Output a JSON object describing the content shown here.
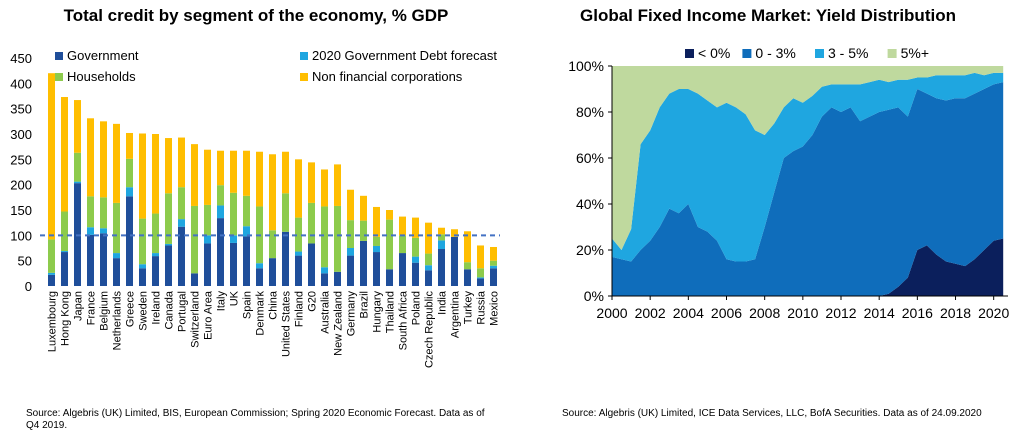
{
  "chart_data": [
    {
      "type": "bar",
      "stacked": true,
      "title": "Total credit by segment of the economy, % GDP",
      "ylim": [
        0,
        450
      ],
      "y_ticks": [
        0,
        50,
        100,
        150,
        200,
        250,
        300,
        350,
        400,
        450
      ],
      "grid": false,
      "legend_position": "top",
      "reference_line": {
        "value": 100,
        "style": "dashed",
        "color": "#4472C4"
      },
      "categories": [
        "Luxembourg",
        "Hong Kong",
        "Japan",
        "France",
        "Belgium",
        "Netherlands",
        "Greece",
        "Sweden",
        "Ireland",
        "Canada",
        "Portugal",
        "Switzerland",
        "Euro Area",
        "Italy",
        "UK",
        "Spain",
        "Denmark",
        "China",
        "United States",
        "Finland",
        "G20",
        "Australia",
        "New Zealand",
        "Germany",
        "Brazil",
        "Hungary",
        "Thailand",
        "South Africa",
        "Poland",
        "Czech Republic",
        "India",
        "Argentina",
        "Turkey",
        "Russia",
        "Mexico"
      ],
      "series": [
        {
          "name": "Government",
          "color": "#1F4E9A",
          "values": [
            22,
            67,
            203,
            101,
            104,
            55,
            177,
            35,
            59,
            80,
            117,
            25,
            84,
            134,
            85,
            98,
            35,
            55,
            107,
            60,
            84,
            25,
            28,
            60,
            89,
            67,
            33,
            65,
            46,
            31,
            73,
            97,
            33,
            15,
            35
          ]
        },
        {
          "name": "2020 Government Debt forecast",
          "color": "#1FA6E0",
          "values": [
            4,
            2,
            3,
            15,
            10,
            10,
            18,
            8,
            6,
            3,
            15,
            0,
            16,
            25,
            15,
            20,
            10,
            0,
            0,
            8,
            0,
            12,
            0,
            15,
            0,
            12,
            0,
            0,
            12,
            10,
            17,
            0,
            0,
            2,
            5
          ]
        },
        {
          "name": "Households",
          "color": "#8DCB4C",
          "values": [
            66,
            78,
            57,
            61,
            61,
            99,
            56,
            90,
            78,
            100,
            63,
            133,
            60,
            40,
            84,
            60,
            112,
            55,
            76,
            67,
            80,
            120,
            130,
            55,
            40,
            18,
            98,
            35,
            37,
            23,
            12,
            0,
            14,
            18,
            10
          ]
        },
        {
          "name": "Non financial corporations",
          "color": "#FFBE00",
          "values": [
            328,
            226,
            104,
            154,
            150,
            156,
            51,
            168,
            157,
            109,
            98,
            122,
            109,
            68,
            83,
            89,
            108,
            150,
            82,
            115,
            80,
            73,
            82,
            60,
            49,
            59,
            19,
            37,
            40,
            61,
            13,
            15,
            61,
            45,
            27
          ]
        }
      ]
    },
    {
      "type": "area",
      "stacked": true,
      "percent": true,
      "title": "Global Fixed Income Market: Yield Distribution",
      "xlim": [
        2000,
        2020.75
      ],
      "x_ticks": [
        2000,
        2002,
        2004,
        2006,
        2008,
        2010,
        2012,
        2014,
        2016,
        2018,
        2020
      ],
      "ylim": [
        0,
        100
      ],
      "y_ticks": [
        "0%",
        "20%",
        "40%",
        "60%",
        "80%",
        "100%"
      ],
      "legend_position": "top-right",
      "x": [
        2000,
        2000.5,
        2001,
        2001.5,
        2002,
        2002.5,
        2003,
        2003.5,
        2004,
        2004.5,
        2005,
        2005.5,
        2006,
        2006.5,
        2007,
        2007.5,
        2008,
        2008.5,
        2009,
        2009.5,
        2010,
        2010.5,
        2011,
        2011.5,
        2012,
        2012.5,
        2013,
        2013.5,
        2014,
        2014.5,
        2015,
        2015.5,
        2016,
        2016.5,
        2017,
        2017.5,
        2018,
        2018.5,
        2019,
        2019.5,
        2020,
        2020.5
      ],
      "series": [
        {
          "name": "< 0%",
          "color": "#0B1F5C",
          "values": [
            0,
            0,
            0,
            0,
            0,
            0,
            0,
            0,
            0,
            0,
            0,
            0,
            0,
            0,
            0,
            0,
            0,
            0,
            0,
            0,
            0,
            0,
            0,
            0,
            0,
            0,
            0,
            0,
            0,
            1,
            4,
            8,
            20,
            22,
            18,
            15,
            14,
            13,
            16,
            20,
            24,
            25
          ]
        },
        {
          "name": "0 - 3%",
          "color": "#0F6DBB",
          "values": [
            17,
            16,
            15,
            20,
            24,
            30,
            38,
            36,
            40,
            30,
            28,
            24,
            16,
            15,
            15,
            16,
            30,
            45,
            60,
            63,
            65,
            70,
            78,
            82,
            80,
            82,
            76,
            78,
            80,
            80,
            78,
            70,
            70,
            66,
            68,
            70,
            72,
            73,
            72,
            70,
            68,
            68
          ]
        },
        {
          "name": "3 - 5%",
          "color": "#1FA6E0",
          "values": [
            8,
            4,
            14,
            46,
            48,
            52,
            50,
            54,
            50,
            58,
            57,
            58,
            68,
            67,
            64,
            56,
            40,
            30,
            22,
            23,
            19,
            17,
            13,
            10,
            12,
            10,
            16,
            15,
            14,
            12,
            12,
            16,
            5,
            7,
            10,
            11,
            10,
            10,
            9,
            6,
            5,
            4
          ]
        },
        {
          "name": "5%+",
          "color": "#BFD99E",
          "values": [
            75,
            80,
            71,
            34,
            28,
            18,
            12,
            10,
            10,
            12,
            15,
            18,
            16,
            18,
            21,
            28,
            30,
            25,
            18,
            14,
            16,
            13,
            9,
            8,
            8,
            8,
            8,
            7,
            6,
            7,
            6,
            6,
            5,
            5,
            4,
            4,
            4,
            4,
            3,
            4,
            3,
            3
          ]
        }
      ]
    }
  ],
  "sources": {
    "left": "Source: Algebris (UK) Limited, BIS, European Commission; Spring 2020 Economic Forecast. Data as of Q4 2019.",
    "right": "Source: Algebris (UK) Limited, ICE Data Services, LLC, BofA Securities. Data as of 24.09.2020"
  }
}
